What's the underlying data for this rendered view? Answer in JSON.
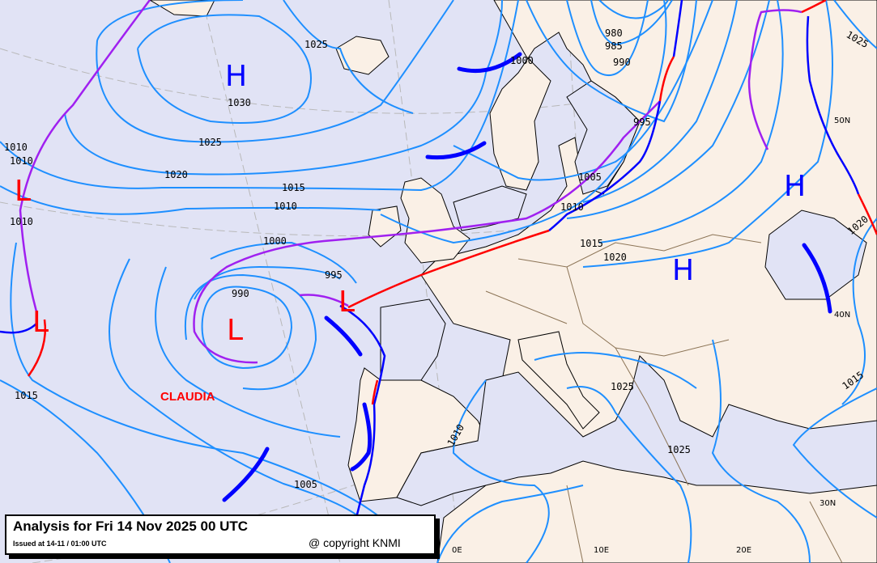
{
  "title": "Analysis for Fri 14 Nov 2025 00 UTC",
  "issued": "Issued at 14-11 / 01:00 UTC",
  "copyright": "@ copyright KNMI",
  "storm_name": "CLAUDIA",
  "colors": {
    "sea": "#e1e3f5",
    "land": "#faf0e6",
    "isobar": "#1e8fff",
    "cold_front": "#0000ff",
    "warm_front": "#ff0000",
    "occluded_front": "#a020f0",
    "low": "#ff0000",
    "high": "#0000ff"
  },
  "pressure_centers": [
    {
      "type": "high",
      "label": "H",
      "value": "1030"
    },
    {
      "type": "low",
      "label": "L"
    },
    {
      "type": "low",
      "label": "L"
    },
    {
      "type": "low",
      "label": "L"
    },
    {
      "type": "low",
      "label": "L"
    },
    {
      "type": "high",
      "label": "H"
    },
    {
      "type": "high",
      "label": "H"
    }
  ],
  "isobar_labels": [
    "1025",
    "1025",
    "1020",
    "1015",
    "1010",
    "1000",
    "995",
    "990",
    "1010",
    "1010",
    "1010",
    "1015",
    "1005",
    "1010",
    "1025",
    "1025",
    "1015",
    "1020",
    "1015",
    "1005",
    "1010",
    "995",
    "980",
    "985",
    "990",
    "1000",
    "1025",
    "1020"
  ],
  "graticule_labels": {
    "lat": [
      "50N",
      "40N",
      "30N"
    ],
    "lon": [
      "0E",
      "10E",
      "20E"
    ]
  }
}
